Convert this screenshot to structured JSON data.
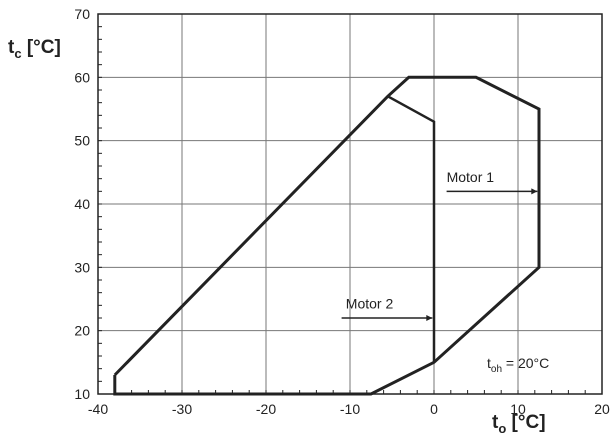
{
  "chart_data": {
    "type": "line",
    "title": "",
    "xlabel": {
      "main": "t",
      "sub": "o",
      "unit": " [°C]"
    },
    "ylabel": {
      "main": "t",
      "sub": "c",
      "unit": " [°C]"
    },
    "xlim": [
      -40,
      20
    ],
    "ylim": [
      10,
      70
    ],
    "xticks": [
      -40,
      -30,
      -20,
      -10,
      0,
      10,
      20
    ],
    "yticks": [
      10,
      20,
      30,
      40,
      50,
      60,
      70
    ],
    "grid": true,
    "series": [
      {
        "name": "Motor 1",
        "color": "#222222",
        "points": [
          [
            -38,
            13
          ],
          [
            -5.5,
            57
          ],
          [
            -3,
            60
          ],
          [
            5,
            60
          ],
          [
            12.5,
            55
          ],
          [
            12.5,
            30
          ],
          [
            0,
            15
          ],
          [
            -7.5,
            10
          ],
          [
            -38,
            10
          ],
          [
            -38,
            13
          ]
        ]
      },
      {
        "name": "Motor 2",
        "color": "#222222",
        "points": [
          [
            0,
            15
          ],
          [
            0,
            53
          ],
          [
            -5.5,
            57
          ]
        ]
      }
    ],
    "annotations": [
      {
        "text": "Motor 1",
        "label_x": 1.5,
        "label_y": 43.5,
        "arrow_from": [
          1.5,
          42
        ],
        "arrow_to": [
          12.3,
          42
        ]
      },
      {
        "text": "Motor 2",
        "label_x": -10.5,
        "label_y": 23.5,
        "arrow_from": [
          -11,
          22
        ],
        "arrow_to": [
          -0.2,
          22
        ]
      }
    ],
    "condition_label": {
      "main": "t",
      "sub": "oh",
      "rest": " = 20°C"
    }
  }
}
